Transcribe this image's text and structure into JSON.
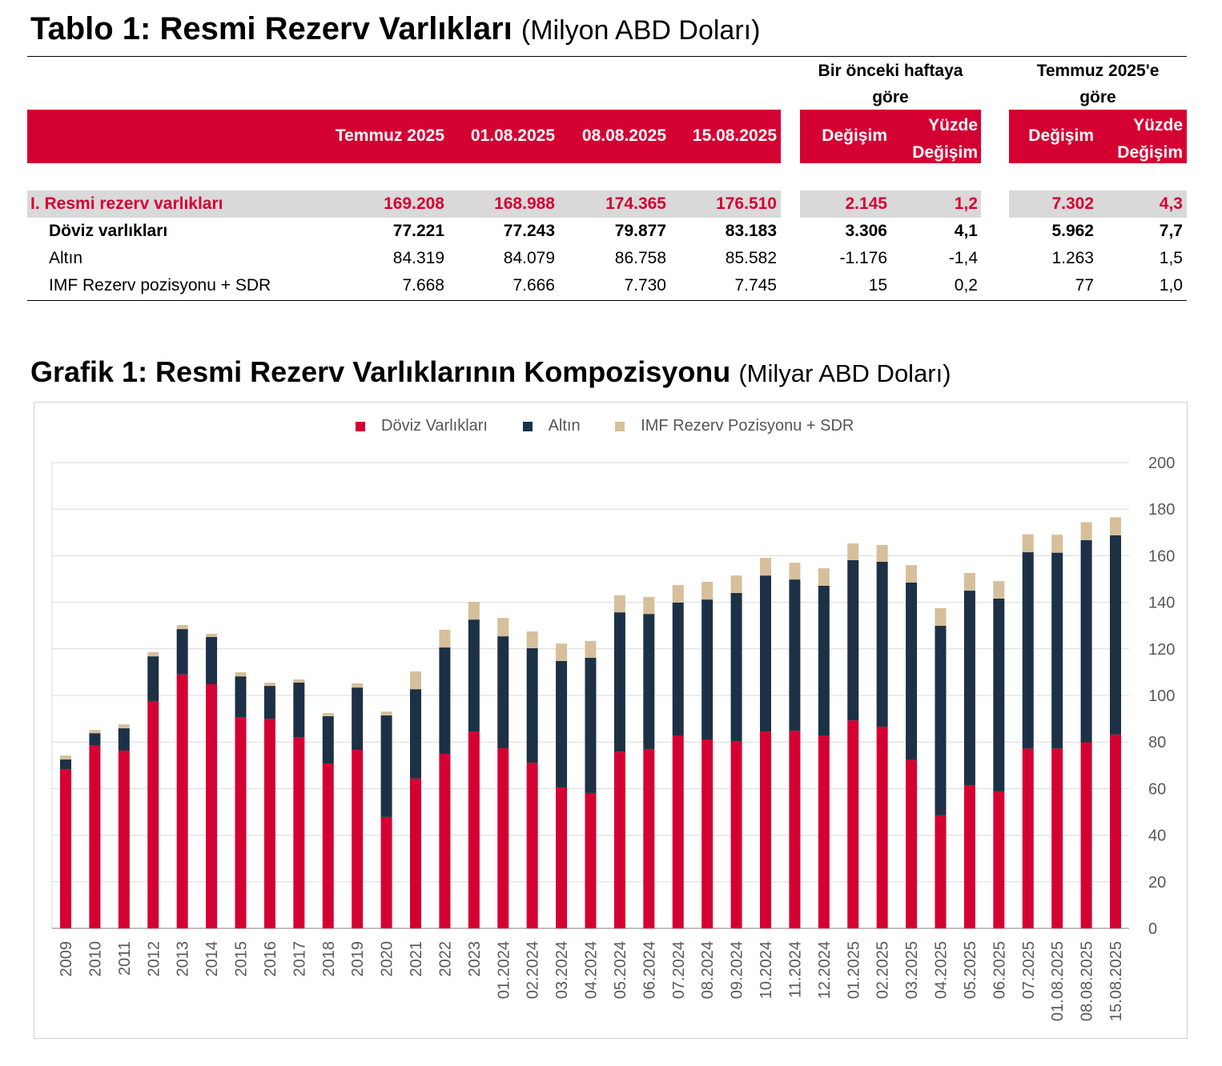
{
  "table": {
    "title": "Tablo 1: Resmi Rezerv Varlıkları",
    "unit": "(Milyon ABD Doları)",
    "group_headers": [
      "Bir önceki haftaya göre",
      "Temmuz 2025'e göre"
    ],
    "columns": [
      "Temmuz 2025",
      "01.08.2025",
      "08.08.2025",
      "15.08.2025",
      "Değişim",
      "Yüzde Değişim",
      "Değişim",
      "Yüzde Değişim"
    ],
    "rows": [
      {
        "label": "I. Resmi rezerv varlıkları",
        "values": [
          "169.208",
          "168.988",
          "174.365",
          "176.510",
          "2.145",
          "1,2",
          "7.302",
          "4,3"
        ]
      },
      {
        "label": "Döviz varlıkları",
        "values": [
          "77.221",
          "77.243",
          "79.877",
          "83.183",
          "3.306",
          "4,1",
          "5.962",
          "7,7"
        ]
      },
      {
        "label": "Altın",
        "values": [
          "84.319",
          "84.079",
          "86.758",
          "85.582",
          "-1.176",
          "-1,4",
          "1.263",
          "1,5"
        ]
      },
      {
        "label": "IMF Rezerv pozisyonu + SDR",
        "values": [
          "7.668",
          "7.666",
          "7.730",
          "7.745",
          "15",
          "0,2",
          "77",
          "1,0"
        ]
      }
    ]
  },
  "chart_title": "Grafik 1: Resmi Rezerv Varlıklarının Kompozisyonu",
  "chart_unit": "(Milyar ABD Doları)",
  "chart_data": {
    "type": "bar",
    "stacked": true,
    "title": "Grafik 1: Resmi Rezerv Varlıklarının Kompozisyonu (Milyar ABD Doları)",
    "ylim": [
      0,
      200
    ],
    "yticks": [
      0,
      20,
      40,
      60,
      80,
      100,
      120,
      140,
      160,
      180,
      200
    ],
    "grid": true,
    "legend_position": "top",
    "y_axis_side": "right",
    "categories": [
      "2009",
      "2010",
      "2011",
      "2012",
      "2013",
      "2014",
      "2015",
      "2016",
      "2017",
      "2018",
      "2019",
      "2020",
      "2021",
      "2022",
      "2023",
      "01.2024",
      "02.2024",
      "03.2024",
      "04.2024",
      "05.2024",
      "06.2024",
      "07.2024",
      "08.2024",
      "09.2024",
      "10.2024",
      "11.2024",
      "12.2024",
      "01.2025",
      "02.2025",
      "03.2025",
      "04.2025",
      "05.2025",
      "06.2025",
      "07.2025",
      "01.08.2025",
      "08.08.2025",
      "15.08.2025"
    ],
    "series": [
      {
        "name": "Döviz Varlıkları",
        "color": "#D50032",
        "values": [
          68.4,
          78.4,
          76.3,
          97.6,
          109.0,
          104.8,
          90.7,
          90.0,
          82.1,
          70.8,
          76.6,
          47.8,
          64.3,
          74.9,
          84.5,
          77.3,
          71.1,
          60.5,
          58.1,
          75.9,
          77.0,
          82.8,
          81.1,
          80.4,
          84.5,
          84.9,
          82.8,
          89.3,
          86.6,
          72.5,
          48.5,
          61.5,
          58.8,
          77.2,
          77.2,
          79.9,
          83.2
        ]
      },
      {
        "name": "Altın",
        "color": "#1C3146",
        "values": [
          4.1,
          5.4,
          9.6,
          19.2,
          19.5,
          20.3,
          17.5,
          14.1,
          23.4,
          20.3,
          26.8,
          43.6,
          38.4,
          45.7,
          48.1,
          48.1,
          49.2,
          54.3,
          58.1,
          59.8,
          58.0,
          57.1,
          60.1,
          63.6,
          67.0,
          64.9,
          64.3,
          68.8,
          70.8,
          76.0,
          81.4,
          83.5,
          82.8,
          84.3,
          84.1,
          86.8,
          85.6
        ]
      },
      {
        "name": "IMF Rezerv Pozisyonu + SDR",
        "color": "#D6BF9A",
        "values": [
          1.7,
          1.4,
          1.7,
          1.8,
          1.7,
          1.4,
          1.8,
          1.4,
          1.4,
          1.3,
          1.8,
          1.7,
          7.6,
          7.6,
          7.6,
          7.9,
          7.2,
          7.5,
          7.2,
          7.3,
          7.3,
          7.5,
          7.6,
          7.5,
          7.6,
          7.2,
          7.5,
          7.2,
          7.2,
          7.5,
          7.6,
          7.6,
          7.5,
          7.7,
          7.7,
          7.7,
          7.7
        ]
      }
    ]
  }
}
